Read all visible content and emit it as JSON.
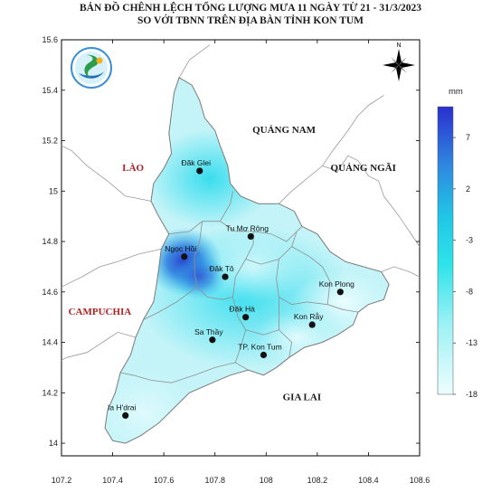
{
  "title": {
    "line1": "BẢN ĐỒ CHÊNH LỆCH TỔNG LƯỢNG MƯA 11 NGÀY TỪ 21 - 31/3/2023",
    "line2": "SO VỚI TBNN TRÊN ĐỊA BÀN TỈNH KON TUM"
  },
  "axes": {
    "x_ticks": [
      "107.2",
      "107.4",
      "107.6",
      "107.8",
      "108",
      "108.2",
      "108.4",
      "108.6"
    ],
    "y_ticks": [
      "15.6",
      "15.4",
      "15.2",
      "15",
      "14.8",
      "14.6",
      "14.4",
      "14.2",
      "14"
    ],
    "x_range": [
      107.2,
      108.6
    ],
    "y_range": [
      13.95,
      15.6
    ]
  },
  "regions": [
    {
      "label": "QUẢNG NAM",
      "lon": 108.07,
      "lat": 15.23,
      "color": "#1a1a1a"
    },
    {
      "label": "QUẢNG NGÃI",
      "lon": 108.38,
      "lat": 15.08,
      "color": "#1a1a1a"
    },
    {
      "label": "LÀO",
      "lon": 107.48,
      "lat": 15.08,
      "color": "#b22222"
    },
    {
      "label": "CAMPUCHIA",
      "lon": 107.35,
      "lat": 14.51,
      "color": "#b22222"
    },
    {
      "label": "GIA LAI",
      "lon": 108.14,
      "lat": 14.17,
      "color": "#1a1a1a"
    }
  ],
  "places": [
    {
      "name": "Đăk Glei",
      "lon": 107.74,
      "lat": 15.08
    },
    {
      "name": "Tu Mơ Rông",
      "lon": 107.94,
      "lat": 14.82
    },
    {
      "name": "Ngọc Hồi",
      "lon": 107.68,
      "lat": 14.74
    },
    {
      "name": "Đăk Tô",
      "lon": 107.84,
      "lat": 14.66
    },
    {
      "name": "Kon Plong",
      "lon": 108.29,
      "lat": 14.6
    },
    {
      "name": "Đăk Hà",
      "lon": 107.92,
      "lat": 14.5
    },
    {
      "name": "Kon Rẫy",
      "lon": 108.18,
      "lat": 14.47
    },
    {
      "name": "Sa Thầy",
      "lon": 107.79,
      "lat": 14.41
    },
    {
      "name": "TP. Kon Tum",
      "lon": 107.99,
      "lat": 14.35
    },
    {
      "name": "Ia H'drai",
      "lon": 107.45,
      "lat": 14.11
    }
  ],
  "colorbar": {
    "unit": "mm",
    "ticks": [
      "7",
      "2",
      "-3",
      "-8",
      "-13",
      "-18"
    ],
    "values": [
      7,
      2,
      -3,
      -8,
      -13,
      -18
    ],
    "min": -18,
    "max": 10
  },
  "compass": {
    "north_label": "N"
  },
  "colors": {
    "deep_blue": "#2a3fd0",
    "cyan": "#26e0e8",
    "pale": "#eafcfd",
    "boundary": "#8a8a8a",
    "frame": "#000000"
  }
}
